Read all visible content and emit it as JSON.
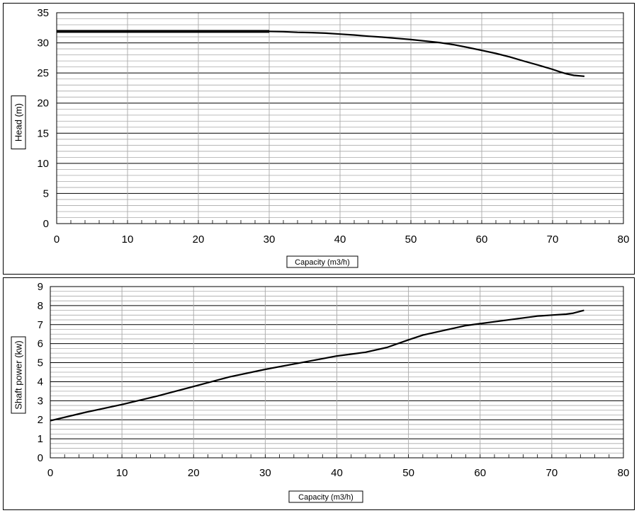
{
  "chart_data": [
    {
      "type": "line",
      "xlabel": "Capacity (m3/h)",
      "ylabel": "Head (m)",
      "xlim": [
        0,
        80
      ],
      "ylim": [
        0,
        35
      ],
      "xticks": [
        "0",
        "10",
        "20",
        "30",
        "40",
        "50",
        "60",
        "70",
        "80"
      ],
      "yticks": [
        "0",
        "5",
        "10",
        "15",
        "20",
        "25",
        "30",
        "35"
      ],
      "grid": true,
      "series": [
        {
          "x": [
            0,
            5,
            10,
            15,
            20,
            25,
            30,
            32,
            34,
            36,
            38,
            40,
            42,
            44,
            46,
            48,
            50,
            52,
            54,
            56,
            58,
            60,
            62,
            64,
            66,
            68,
            70,
            71,
            72,
            73,
            74.5
          ],
          "y": [
            31.9,
            31.9,
            31.9,
            31.9,
            31.9,
            31.9,
            31.9,
            31.85,
            31.75,
            31.7,
            31.6,
            31.45,
            31.3,
            31.1,
            30.95,
            30.75,
            30.55,
            30.3,
            30.05,
            29.7,
            29.25,
            28.75,
            28.25,
            27.65,
            26.95,
            26.3,
            25.6,
            25.2,
            24.85,
            24.6,
            24.45
          ]
        }
      ]
    },
    {
      "type": "line",
      "xlabel": "Capacity (m3/h)",
      "ylabel": "Shaft power (kw)",
      "xlim": [
        0,
        80
      ],
      "ylim": [
        0,
        9
      ],
      "xticks": [
        "0",
        "10",
        "20",
        "30",
        "40",
        "50",
        "60",
        "70",
        "80"
      ],
      "yticks": [
        "0",
        "1",
        "2",
        "3",
        "4",
        "5",
        "6",
        "7",
        "8",
        "9"
      ],
      "grid": true,
      "series": [
        {
          "x": [
            0,
            5,
            10,
            15,
            20,
            25,
            30,
            35,
            40,
            44,
            47,
            50,
            52,
            55,
            58,
            60,
            62,
            65,
            68,
            70,
            72,
            73,
            74.5
          ],
          "y": [
            1.95,
            2.4,
            2.8,
            3.25,
            3.75,
            4.25,
            4.65,
            5.0,
            5.35,
            5.55,
            5.8,
            6.2,
            6.45,
            6.7,
            6.95,
            7.05,
            7.15,
            7.3,
            7.45,
            7.5,
            7.55,
            7.6,
            7.75
          ]
        }
      ]
    }
  ]
}
